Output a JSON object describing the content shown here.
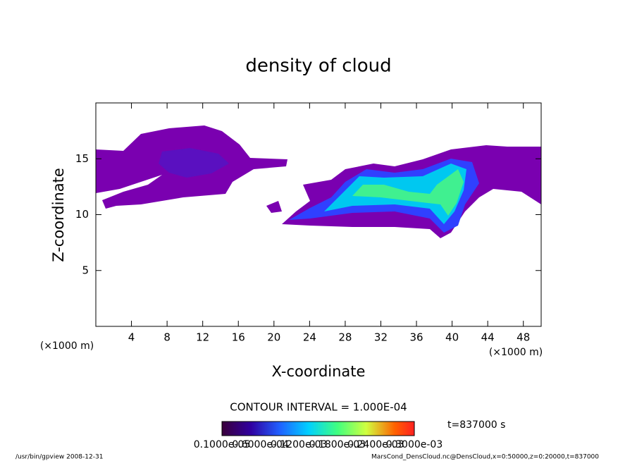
{
  "chart_data": {
    "type": "contour",
    "title": "density of cloud",
    "xlabel": "X-coordinate",
    "ylabel": "Z-coordinate",
    "y_unit": "(×1000 m)",
    "x_unit": "(×1000 m)",
    "xlim": [
      0,
      50
    ],
    "ylim": [
      0,
      20
    ],
    "xticks": [
      4,
      8,
      12,
      16,
      20,
      24,
      28,
      32,
      36,
      40,
      44,
      48
    ],
    "yticks": [
      5,
      10,
      15
    ],
    "contour_interval": "CONTOUR INTERVAL = 1.000E-04",
    "time": "t=837000 s",
    "colorbar_labels": [
      "0.1000e-05",
      "0.6000e-04",
      "0.1200e-03",
      "0.1800e-03",
      "0.2400e-03",
      "0.3000e-03"
    ]
  },
  "footer": {
    "left": "/usr/bin/gpview   2008-12-31",
    "right": "MarsCond_DensCloud.nc@DensCloud,x=0:50000,z=0:20000,t=837000"
  }
}
